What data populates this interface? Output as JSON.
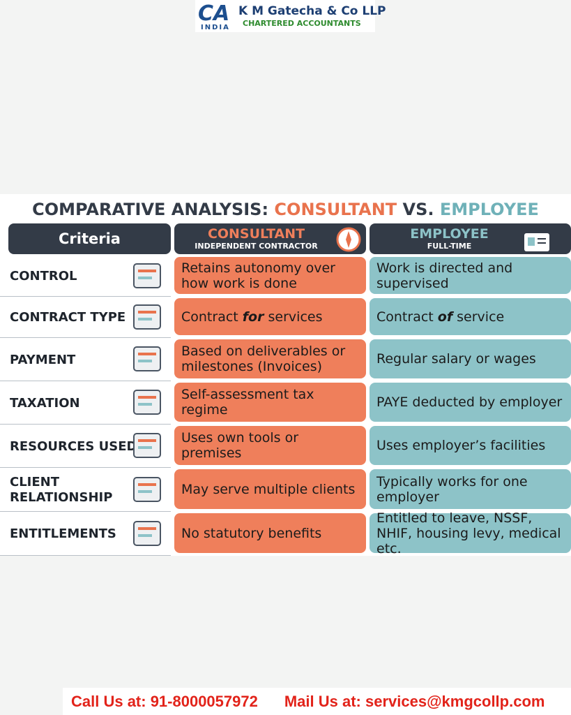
{
  "header": {
    "logo_mark": "CA",
    "logo_country": "INDIA",
    "firm_name": "K M Gatecha & Co LLP",
    "firm_tagline": "CHARTERED ACCOUNTANTS"
  },
  "title": {
    "lead": "COMPARATIVE ANALYSIS:",
    "left": "CONSULTANT",
    "versus": "VS.",
    "right": "EMPLOYEE"
  },
  "table": {
    "columns": {
      "criteria": "Criteria",
      "consultant": {
        "title": "CONSULTANT",
        "subtitle": "INDEPENDENT CONTRACTOR"
      },
      "employee": {
        "title": "EMPLOYEE",
        "subtitle": "FULL-TIME"
      }
    },
    "rows": [
      {
        "criterion": [
          "CONTROL"
        ],
        "consultant": [
          "Retains autonomy over how work is done"
        ],
        "employee": [
          "Work is directed and supervised"
        ]
      },
      {
        "criterion": [
          "CONTRACT TYPE"
        ],
        "consultant": [
          "Contract ",
          "for",
          " services"
        ],
        "employee": [
          "Contract ",
          "of",
          " service"
        ]
      },
      {
        "criterion": [
          "PAYMENT"
        ],
        "consultant": [
          "Based on deliverables or milestones (Invoices)"
        ],
        "employee": [
          "Regular salary or wages"
        ]
      },
      {
        "criterion": [
          "TAXATION"
        ],
        "consultant": [
          "Self-assessment tax regime"
        ],
        "employee": [
          "PAYE deducted by employer"
        ]
      },
      {
        "criterion": [
          "RESOURCES USED"
        ],
        "consultant": [
          "Uses own tools or premises"
        ],
        "employee": [
          "Uses employer’s facilities"
        ]
      },
      {
        "criterion": [
          "CLIENT",
          "RELATIONSHIP"
        ],
        "consultant": [
          "May serve multiple clients"
        ],
        "employee": [
          "Typically works for one employer"
        ]
      },
      {
        "criterion": [
          "ENTITLEMENTS"
        ],
        "consultant": [
          "No statutory benefits"
        ],
        "employee": [
          "Entitled to leave, NSSF, NHIF, housing levy, medical etc."
        ]
      }
    ]
  },
  "footer": {
    "phone": "Call Us at: 91-8000057972",
    "email": "Mail Us at: services@kmgcollp.com"
  }
}
